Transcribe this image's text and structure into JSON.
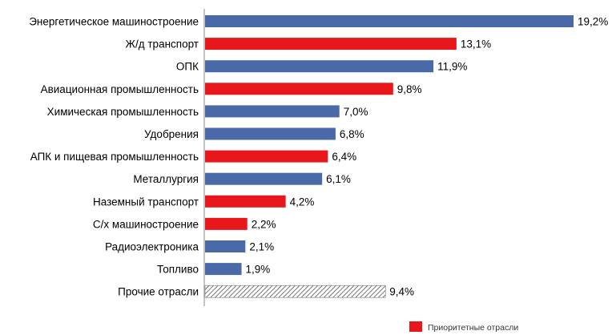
{
  "chart_data": {
    "type": "bar",
    "orientation": "horizontal",
    "categories": [
      "Энергетическое машиностроение",
      "Ж/д транспорт",
      "ОПК",
      "Авиационная промышленность",
      "Химическая промышленность",
      "Удобрения",
      "АПК и пищевая промышленность",
      "Металлургия",
      "Наземный транспорт",
      "С/х машиностроение",
      "Радиоэлектроника",
      "Топливо",
      "Прочие отрасли"
    ],
    "values": [
      19.2,
      13.1,
      11.9,
      9.8,
      7.0,
      6.8,
      6.4,
      6.1,
      4.2,
      2.2,
      2.1,
      1.9,
      9.4
    ],
    "value_labels": [
      "19,2%",
      "13,1%",
      "11,9%",
      "9,8%",
      "7,0%",
      "6,8%",
      "6,4%",
      "6,1%",
      "4,2%",
      "2,2%",
      "2,1%",
      "1,9%",
      "9,4%"
    ],
    "bar_kind": [
      "normal",
      "priority",
      "normal",
      "priority",
      "normal",
      "normal",
      "priority",
      "normal",
      "priority",
      "priority",
      "normal",
      "normal",
      "other"
    ],
    "colors": {
      "normal": "#4A69A8",
      "priority": "#E8171C",
      "other_hatch": "#555555"
    },
    "legend": [
      {
        "label": "Приоритетные отрасли",
        "color": "#E8171C"
      }
    ],
    "legend_position": "bottom-right",
    "xlim": [
      0,
      19.2
    ],
    "grid": false,
    "axis_labels_visible": false
  }
}
